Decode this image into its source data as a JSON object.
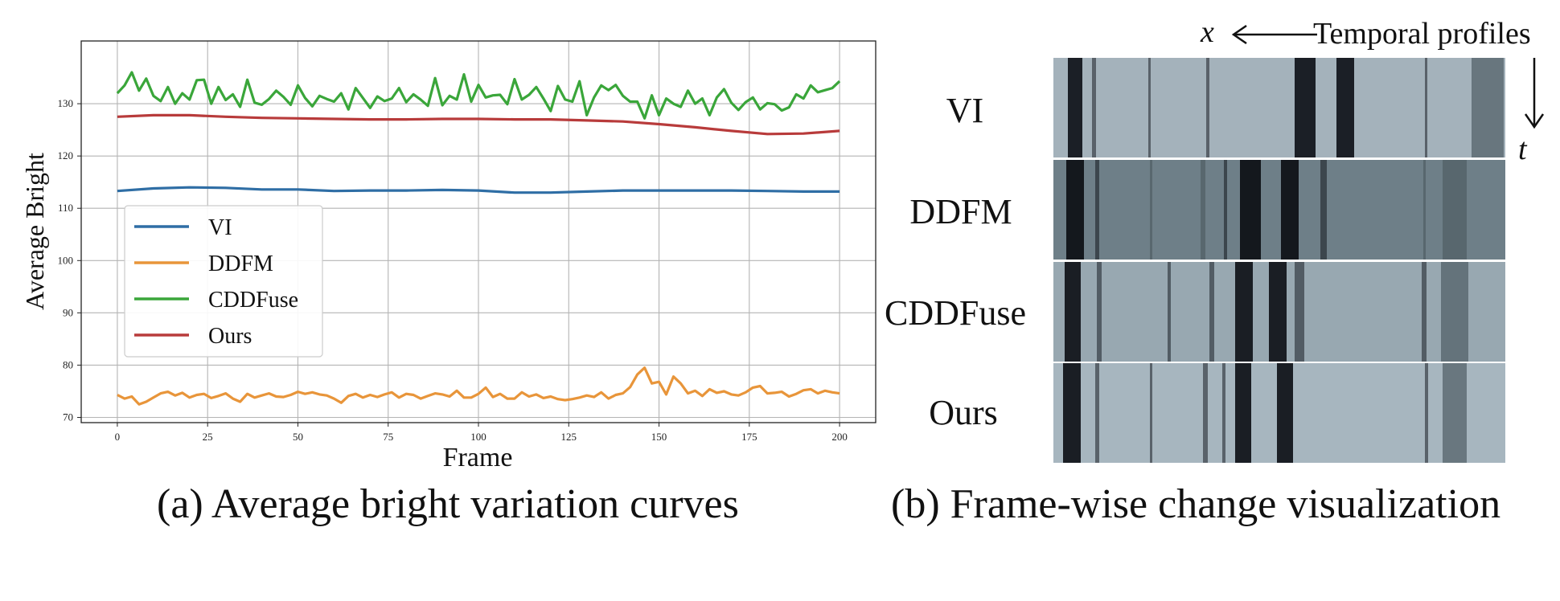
{
  "chart_data": {
    "type": "line",
    "caption": "(a) Average bright variation curves",
    "xlabel": "Frame",
    "ylabel": "Average Bright",
    "xlim": [
      -10,
      210
    ],
    "ylim": [
      69,
      142
    ],
    "xticks": [
      0,
      25,
      50,
      75,
      100,
      125,
      150,
      175,
      200
    ],
    "yticks": [
      70,
      80,
      90,
      100,
      110,
      120,
      130
    ],
    "grid": true,
    "legend_position": "center-left",
    "series": [
      {
        "name": "VI",
        "color": "#2f6ea5",
        "x": [
          0,
          10,
          20,
          30,
          40,
          50,
          60,
          70,
          80,
          90,
          100,
          110,
          120,
          130,
          140,
          150,
          160,
          170,
          180,
          190,
          200
        ],
        "values": [
          113.3,
          113.8,
          114.0,
          113.9,
          113.6,
          113.6,
          113.3,
          113.4,
          113.4,
          113.5,
          113.4,
          113.0,
          113.0,
          113.2,
          113.4,
          113.4,
          113.4,
          113.4,
          113.3,
          113.2,
          113.2
        ]
      },
      {
        "name": "DDFM",
        "color": "#e8953a",
        "x": [
          0,
          2,
          4,
          6,
          8,
          10,
          12,
          14,
          16,
          18,
          20,
          22,
          24,
          26,
          28,
          30,
          32,
          34,
          36,
          38,
          40,
          42,
          44,
          46,
          48,
          50,
          52,
          54,
          56,
          58,
          60,
          62,
          64,
          66,
          68,
          70,
          72,
          74,
          76,
          78,
          80,
          82,
          84,
          86,
          88,
          90,
          92,
          94,
          96,
          98,
          100,
          102,
          104,
          106,
          108,
          110,
          112,
          114,
          116,
          118,
          120,
          122,
          124,
          126,
          128,
          130,
          132,
          134,
          136,
          138,
          140,
          142,
          144,
          146,
          148,
          150,
          152,
          154,
          156,
          158,
          160,
          162,
          164,
          166,
          168,
          170,
          172,
          174,
          176,
          178,
          180,
          182,
          184,
          186,
          188,
          190,
          192,
          194,
          196,
          198,
          200
        ],
        "values": [
          74.3,
          73.6,
          74.0,
          72.5,
          73.0,
          73.8,
          74.6,
          74.9,
          74.2,
          74.7,
          73.8,
          74.3,
          74.5,
          73.7,
          74.1,
          74.6,
          73.6,
          73.0,
          74.5,
          73.8,
          74.2,
          74.6,
          74.0,
          73.9,
          74.3,
          74.9,
          74.5,
          74.8,
          74.4,
          74.2,
          73.6,
          72.8,
          74.1,
          74.5,
          73.8,
          74.3,
          73.9,
          74.4,
          74.8,
          73.8,
          74.5,
          74.3,
          73.6,
          74.1,
          74.6,
          74.4,
          74.0,
          75.1,
          73.8,
          73.8,
          74.5,
          75.7,
          73.9,
          74.5,
          73.6,
          73.6,
          74.8,
          74.0,
          74.4,
          73.7,
          74.0,
          73.5,
          73.3,
          73.5,
          73.8,
          74.2,
          73.9,
          74.8,
          73.6,
          74.3,
          74.6,
          75.8,
          78.2,
          79.5,
          76.5,
          76.8,
          74.4,
          77.8,
          76.5,
          74.6,
          75.1,
          74.1,
          75.4,
          74.7,
          75.0,
          74.4,
          74.2,
          74.8,
          75.7,
          76.0,
          74.6,
          74.7,
          74.9,
          74.0,
          74.5,
          75.2,
          75.4,
          74.6,
          75.1,
          74.8,
          74.6
        ]
      },
      {
        "name": "CDDFuse",
        "color": "#3aa63a",
        "x": [
          0,
          2,
          4,
          6,
          8,
          10,
          12,
          14,
          16,
          18,
          20,
          22,
          24,
          26,
          28,
          30,
          32,
          34,
          36,
          38,
          40,
          42,
          44,
          46,
          48,
          50,
          52,
          54,
          56,
          58,
          60,
          62,
          64,
          66,
          68,
          70,
          72,
          74,
          76,
          78,
          80,
          82,
          84,
          86,
          88,
          90,
          92,
          94,
          96,
          98,
          100,
          102,
          104,
          106,
          108,
          110,
          112,
          114,
          116,
          118,
          120,
          122,
          124,
          126,
          128,
          130,
          132,
          134,
          136,
          138,
          140,
          142,
          144,
          146,
          148,
          150,
          152,
          154,
          156,
          158,
          160,
          162,
          164,
          166,
          168,
          170,
          172,
          174,
          176,
          178,
          180,
          182,
          184,
          186,
          188,
          190,
          192,
          194,
          196,
          198,
          200
        ],
        "values": [
          132.0,
          133.5,
          136.0,
          132.5,
          134.8,
          131.5,
          130.5,
          133.2,
          130.0,
          132.0,
          130.8,
          134.5,
          134.6,
          130.0,
          133.2,
          130.7,
          131.8,
          129.4,
          134.6,
          130.2,
          129.8,
          130.9,
          132.5,
          131.3,
          129.8,
          133.5,
          131.1,
          129.5,
          131.5,
          130.9,
          130.4,
          132.0,
          128.9,
          133.0,
          131.1,
          129.2,
          131.4,
          130.5,
          131.0,
          133.0,
          130.3,
          131.8,
          130.8,
          129.6,
          134.9,
          129.7,
          131.5,
          130.8,
          135.6,
          130.4,
          133.6,
          131.2,
          131.6,
          131.7,
          129.9,
          134.7,
          130.8,
          131.7,
          133.2,
          131.0,
          128.6,
          133.4,
          130.8,
          130.4,
          134.3,
          127.8,
          131.2,
          133.5,
          132.6,
          133.6,
          131.5,
          130.4,
          130.4,
          127.2,
          131.6,
          127.8,
          131.0,
          130.0,
          129.4,
          132.5,
          130.0,
          131.0,
          127.8,
          131.2,
          132.8,
          130.2,
          128.8,
          130.3,
          131.2,
          128.9,
          130.1,
          129.9,
          128.7,
          129.3,
          131.8,
          131.0,
          133.5,
          132.2,
          132.6,
          133.0,
          134.3
        ]
      },
      {
        "name": "Ours",
        "color": "#b83b3b",
        "x": [
          0,
          10,
          20,
          30,
          40,
          50,
          60,
          70,
          80,
          90,
          100,
          110,
          120,
          130,
          140,
          150,
          160,
          170,
          180,
          190,
          200
        ],
        "values": [
          127.5,
          127.8,
          127.8,
          127.5,
          127.3,
          127.2,
          127.1,
          127.0,
          127.0,
          127.1,
          127.1,
          127.0,
          127.0,
          126.8,
          126.6,
          126.1,
          125.5,
          124.8,
          124.2,
          124.3,
          124.8
        ]
      }
    ]
  },
  "panel_b": {
    "caption": "(b) Frame-wise change visualization",
    "header_label": "Temporal profiles",
    "x_axis_symbol": "x",
    "t_axis_symbol": "t",
    "rows": [
      {
        "label": "VI",
        "bg": "#a4b2bb",
        "accent": "#1b1f26"
      },
      {
        "label": "DDFM",
        "bg": "#6e7f88",
        "accent": "#14181d"
      },
      {
        "label": "CDDFuse",
        "bg": "#98a8b1",
        "accent": "#1a1e24"
      },
      {
        "label": "Ours",
        "bg": "#a7b6bf",
        "accent": "#1a1e24"
      }
    ]
  }
}
